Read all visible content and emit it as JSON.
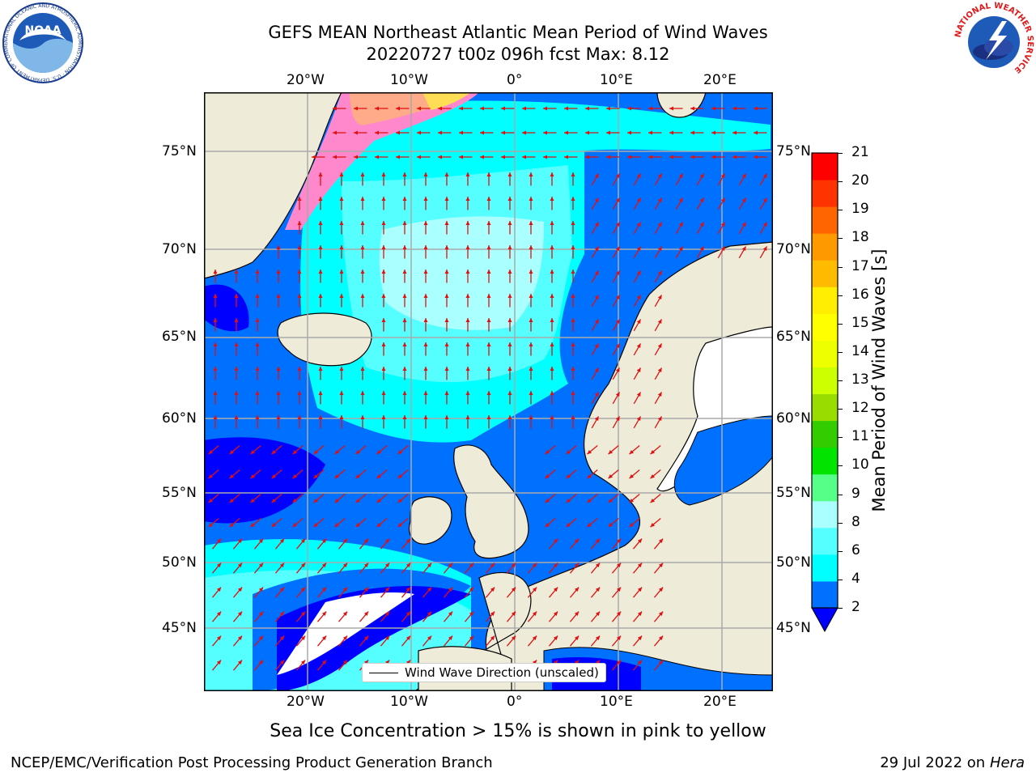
{
  "title": {
    "line1": "GEFS MEAN Northeast Atlantic Mean Period of Wind Waves",
    "line2": "20220727 t00z 096h fcst   Max: 8.12"
  },
  "map": {
    "top_lon_labels": [
      "20°W",
      "10°W",
      "0°",
      "10°E",
      "20°E"
    ],
    "bottom_lon_labels": [
      "20°W",
      "10°W",
      "0°",
      "10°E",
      "20°E"
    ],
    "left_lat_labels": [
      "75°N",
      "70°N",
      "65°N",
      "60°N",
      "55°N",
      "50°N",
      "45°N"
    ],
    "right_lat_labels": [
      "75°N",
      "70°N",
      "65°N",
      "60°N",
      "55°N",
      "50°N",
      "45°N"
    ],
    "legend_label": "Wind Wave Direction (unscaled)",
    "arrow_color": "#e01010",
    "land_color": "#eeecd8",
    "ocean_colors": {
      "below_2": "#0000ff",
      "2_4": "#0070ff",
      "4_6": "#00ffff",
      "6_8": "#55ffff",
      "8_9": "#aaffff"
    }
  },
  "colorbar": {
    "label": "Mean Period of Wind Waves [s]",
    "ticks": [
      "21",
      "20",
      "19",
      "18",
      "17",
      "16",
      "15",
      "14",
      "13",
      "12",
      "11",
      "10",
      "9",
      "8",
      "6",
      "4",
      "2"
    ],
    "colors_bottom_to_top": [
      "#0070ff",
      "#00ffff",
      "#55ffff",
      "#aaffff",
      "#55ff88",
      "#00e400",
      "#33cc00",
      "#99dd00",
      "#ccff00",
      "#eeff00",
      "#ffff00",
      "#ffee00",
      "#ffbb00",
      "#ff9900",
      "#ff6600",
      "#ff3300",
      "#ff0000"
    ],
    "extend_color": "#0000ff"
  },
  "caption": "Sea Ice Concentration > 15% is shown in pink to yellow",
  "footer": {
    "left": "NCEP/EMC/Verification Post Processing Product Generation Branch",
    "right_prefix": "29 Jul 2022 on ",
    "right_host": "Hera"
  },
  "logos": {
    "noaa_text": "NOAA",
    "noaa_ring_text": "NATIONAL OCEANIC AND ATMOSPHERIC ADMINISTRATION · U.S. DEPARTMENT OF COMMERCE",
    "nws_ring_text": "NATIONAL WEATHER SERVICE"
  }
}
